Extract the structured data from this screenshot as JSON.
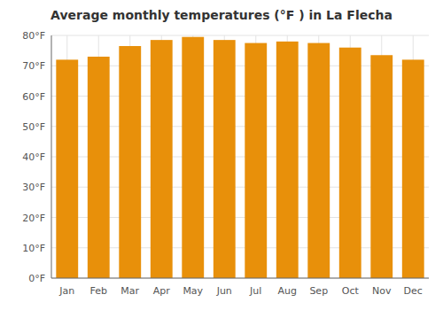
{
  "chart_data": {
    "type": "bar",
    "title": "Average monthly temperatures (°F ) in La Flecha",
    "categories": [
      "Jan",
      "Feb",
      "Mar",
      "Apr",
      "May",
      "Jun",
      "Jul",
      "Aug",
      "Sep",
      "Oct",
      "Nov",
      "Dec"
    ],
    "values": [
      72,
      73,
      76.5,
      78.5,
      79.5,
      78.5,
      77.5,
      78,
      77.5,
      76,
      73.5,
      72
    ],
    "color": "#E8900A",
    "ylim": [
      0,
      80
    ],
    "yticks": [
      {
        "value": 0,
        "label": "0°F"
      },
      {
        "value": 10,
        "label": "10°F"
      },
      {
        "value": 20,
        "label": "20°F"
      },
      {
        "value": 30,
        "label": "30°F"
      },
      {
        "value": 40,
        "label": "40°F"
      },
      {
        "value": 50,
        "label": "50°F"
      },
      {
        "value": 60,
        "label": "60°F"
      },
      {
        "value": 70,
        "label": "70°F"
      },
      {
        "value": 80,
        "label": "80°F"
      }
    ],
    "grid": true
  }
}
